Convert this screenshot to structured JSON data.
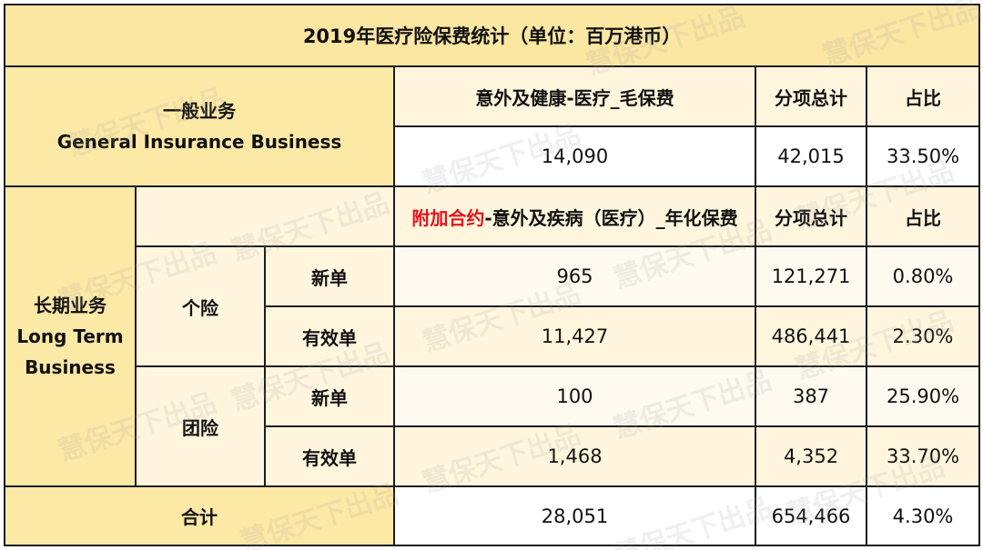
{
  "title": "2019年医疗险保费统计（单位：百万港币）",
  "general": {
    "label_cn": "一般业务",
    "label_en": "General Insurance Business",
    "header_item": "意外及健康-医疗_毛保费",
    "header_total": "分项总计",
    "header_ratio": "占比",
    "value": "14,090",
    "total": "42,015",
    "ratio": "33.50%"
  },
  "long_term": {
    "label_cn": "长期业务",
    "label_en_1": "Long Term",
    "label_en_2": "Business",
    "header_item_red": "附加合约",
    "header_item_rest": "-意外及疾病（医疗）_年化保费",
    "header_total": "分项总计",
    "header_ratio": "占比",
    "groups": [
      {
        "name": "个险",
        "rows": [
          {
            "type": "新单",
            "value": "965",
            "total": "121,271",
            "ratio": "0.80%"
          },
          {
            "type": "有效单",
            "value": "11,427",
            "total": "486,441",
            "ratio": "2.30%"
          }
        ]
      },
      {
        "name": "团险",
        "rows": [
          {
            "type": "新单",
            "value": "100",
            "total": "387",
            "ratio": "25.90%"
          },
          {
            "type": "有效单",
            "value": "1,468",
            "total": "4,352",
            "ratio": "33.70%"
          }
        ]
      }
    ]
  },
  "summary": {
    "label": "合计",
    "value": "28,051",
    "total": "654,466",
    "ratio": "4.30%"
  },
  "watermark": "慧保天下出品",
  "colors": {
    "gold": "#fde9a6",
    "light": "#fff6dd",
    "red": "#e8111b",
    "border": "#1c1c1c"
  }
}
